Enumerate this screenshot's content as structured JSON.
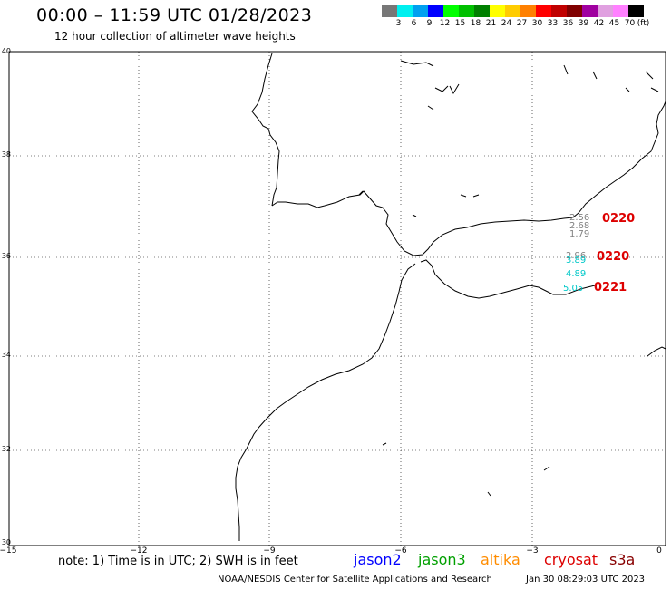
{
  "header": {
    "title": "00:00 – 11:59 UTC 01/28/2023",
    "subtitle": "12 hour collection of altimeter wave heights"
  },
  "color_scale": {
    "unit": "(ft)",
    "swatches": [
      "#777777",
      "#00f0f0",
      "#00a0f0",
      "#0000ff",
      "#00ff00",
      "#00c000",
      "#008000",
      "#ffff00",
      "#ffcc00",
      "#ff8000",
      "#ff0000",
      "#c00000",
      "#800000",
      "#a000a0",
      "#e0a0e0",
      "#ff80ff",
      "#000000"
    ],
    "labels": [
      "3",
      "6",
      "9",
      "12",
      "15",
      "18",
      "21",
      "24",
      "27",
      "30",
      "33",
      "36",
      "39",
      "42",
      "45",
      "70"
    ]
  },
  "map": {
    "lat_labels": [
      "40",
      "38",
      "36",
      "34",
      "32",
      "30"
    ],
    "lon_labels": [
      "−15",
      "−12",
      "−9",
      "−6",
      "−3",
      "0"
    ]
  },
  "observations": [
    {
      "value": "2.56",
      "color": "#808080"
    },
    {
      "value": "2.68",
      "color": "#808080"
    },
    {
      "value": "1.79",
      "color": "#808080"
    },
    {
      "value": "2.96",
      "color": "#808080"
    },
    {
      "value": "3.89",
      "color": "#00c8c8"
    },
    {
      "value": "4.89",
      "color": "#00c8c8"
    },
    {
      "value": "5.05",
      "color": "#00c8c8"
    }
  ],
  "time_labels": [
    "0220",
    "0220",
    "0221"
  ],
  "footer": {
    "note": "note: 1) Time is in UTC; 2) SWH is in feet",
    "satellites": [
      {
        "name": "jason2",
        "color": "#0000ff"
      },
      {
        "name": "jason3",
        "color": "#00a000"
      },
      {
        "name": "altika",
        "color": "#ff8c00"
      },
      {
        "name": "cryosat",
        "color": "#dd0000"
      },
      {
        "name": "s3a",
        "color": "#880000"
      }
    ],
    "credit": "NOAA/NESDIS Center for Satellite Applications and Research",
    "timestamp": "Jan 30 08:29:03 UTC 2023"
  }
}
